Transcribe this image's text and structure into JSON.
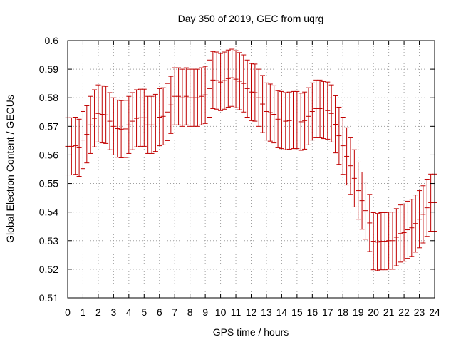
{
  "chart_data": {
    "type": "scatter",
    "title": "Day 350 of 2019, GEC from uqrg",
    "xlabel": "GPS time / hours",
    "ylabel": "Global Electron Content / GECUs",
    "xlim": [
      0,
      24
    ],
    "ylim": [
      0.51,
      0.6
    ],
    "xticks": [
      "0",
      "1",
      "2",
      "3",
      "4",
      "5",
      "6",
      "7",
      "8",
      "9",
      "10",
      "11",
      "12",
      "13",
      "14",
      "15",
      "16",
      "17",
      "18",
      "19",
      "20",
      "21",
      "22",
      "23",
      "24"
    ],
    "yticks": [
      "0.51",
      "0.52",
      "0.53",
      "0.54",
      "0.55",
      "0.56",
      "0.57",
      "0.58",
      "0.59",
      "0.6"
    ],
    "grid": true,
    "series_color": "#c00000",
    "error": 0.01,
    "x": [
      0,
      0.25,
      0.5,
      0.75,
      1,
      1.25,
      1.5,
      1.75,
      2,
      2.25,
      2.5,
      2.75,
      3,
      3.25,
      3.5,
      3.75,
      4,
      4.25,
      4.5,
      4.75,
      5,
      5.25,
      5.5,
      5.75,
      6,
      6.25,
      6.5,
      6.75,
      7,
      7.25,
      7.5,
      7.75,
      8,
      8.25,
      8.5,
      8.75,
      9,
      9.25,
      9.5,
      9.75,
      10,
      10.25,
      10.5,
      10.75,
      11,
      11.25,
      11.5,
      11.75,
      12,
      12.25,
      12.5,
      12.75,
      13,
      13.25,
      13.5,
      13.75,
      14,
      14.25,
      14.5,
      14.75,
      15,
      15.25,
      15.5,
      15.75,
      16,
      16.25,
      16.5,
      16.75,
      17,
      17.25,
      17.5,
      17.75,
      18,
      18.25,
      18.5,
      18.75,
      19,
      19.25,
      19.5,
      19.75,
      20,
      20.25,
      20.5,
      20.75,
      21,
      21.25,
      21.5,
      21.75,
      22,
      22.25,
      22.5,
      22.75,
      23,
      23.25,
      23.5,
      23.75,
      24
    ],
    "values": [
      0.563,
      0.563,
      0.5632,
      0.5625,
      0.5652,
      0.5672,
      0.5705,
      0.5728,
      0.5745,
      0.5742,
      0.574,
      0.5718,
      0.57,
      0.5692,
      0.569,
      0.5691,
      0.5705,
      0.5718,
      0.5728,
      0.573,
      0.573,
      0.5705,
      0.5705,
      0.5712,
      0.5732,
      0.5735,
      0.575,
      0.5775,
      0.5805,
      0.5805,
      0.58,
      0.5805,
      0.58,
      0.58,
      0.58,
      0.5805,
      0.581,
      0.5832,
      0.5862,
      0.586,
      0.5855,
      0.586,
      0.5867,
      0.587,
      0.5865,
      0.5858,
      0.585,
      0.5832,
      0.582,
      0.5818,
      0.58,
      0.5778,
      0.5752,
      0.5748,
      0.5742,
      0.5725,
      0.5722,
      0.5718,
      0.572,
      0.5722,
      0.5722,
      0.5716,
      0.572,
      0.5735,
      0.5752,
      0.5762,
      0.5762,
      0.5757,
      0.5755,
      0.5745,
      0.5707,
      0.5667,
      0.5632,
      0.5595,
      0.5562,
      0.5518,
      0.5475,
      0.544,
      0.5405,
      0.5362,
      0.5298,
      0.5295,
      0.5298,
      0.5298,
      0.53,
      0.53,
      0.5312,
      0.5325,
      0.5328,
      0.5338,
      0.5345,
      0.536,
      0.5375,
      0.5392,
      0.5415,
      0.5433,
      0.5433
    ]
  }
}
